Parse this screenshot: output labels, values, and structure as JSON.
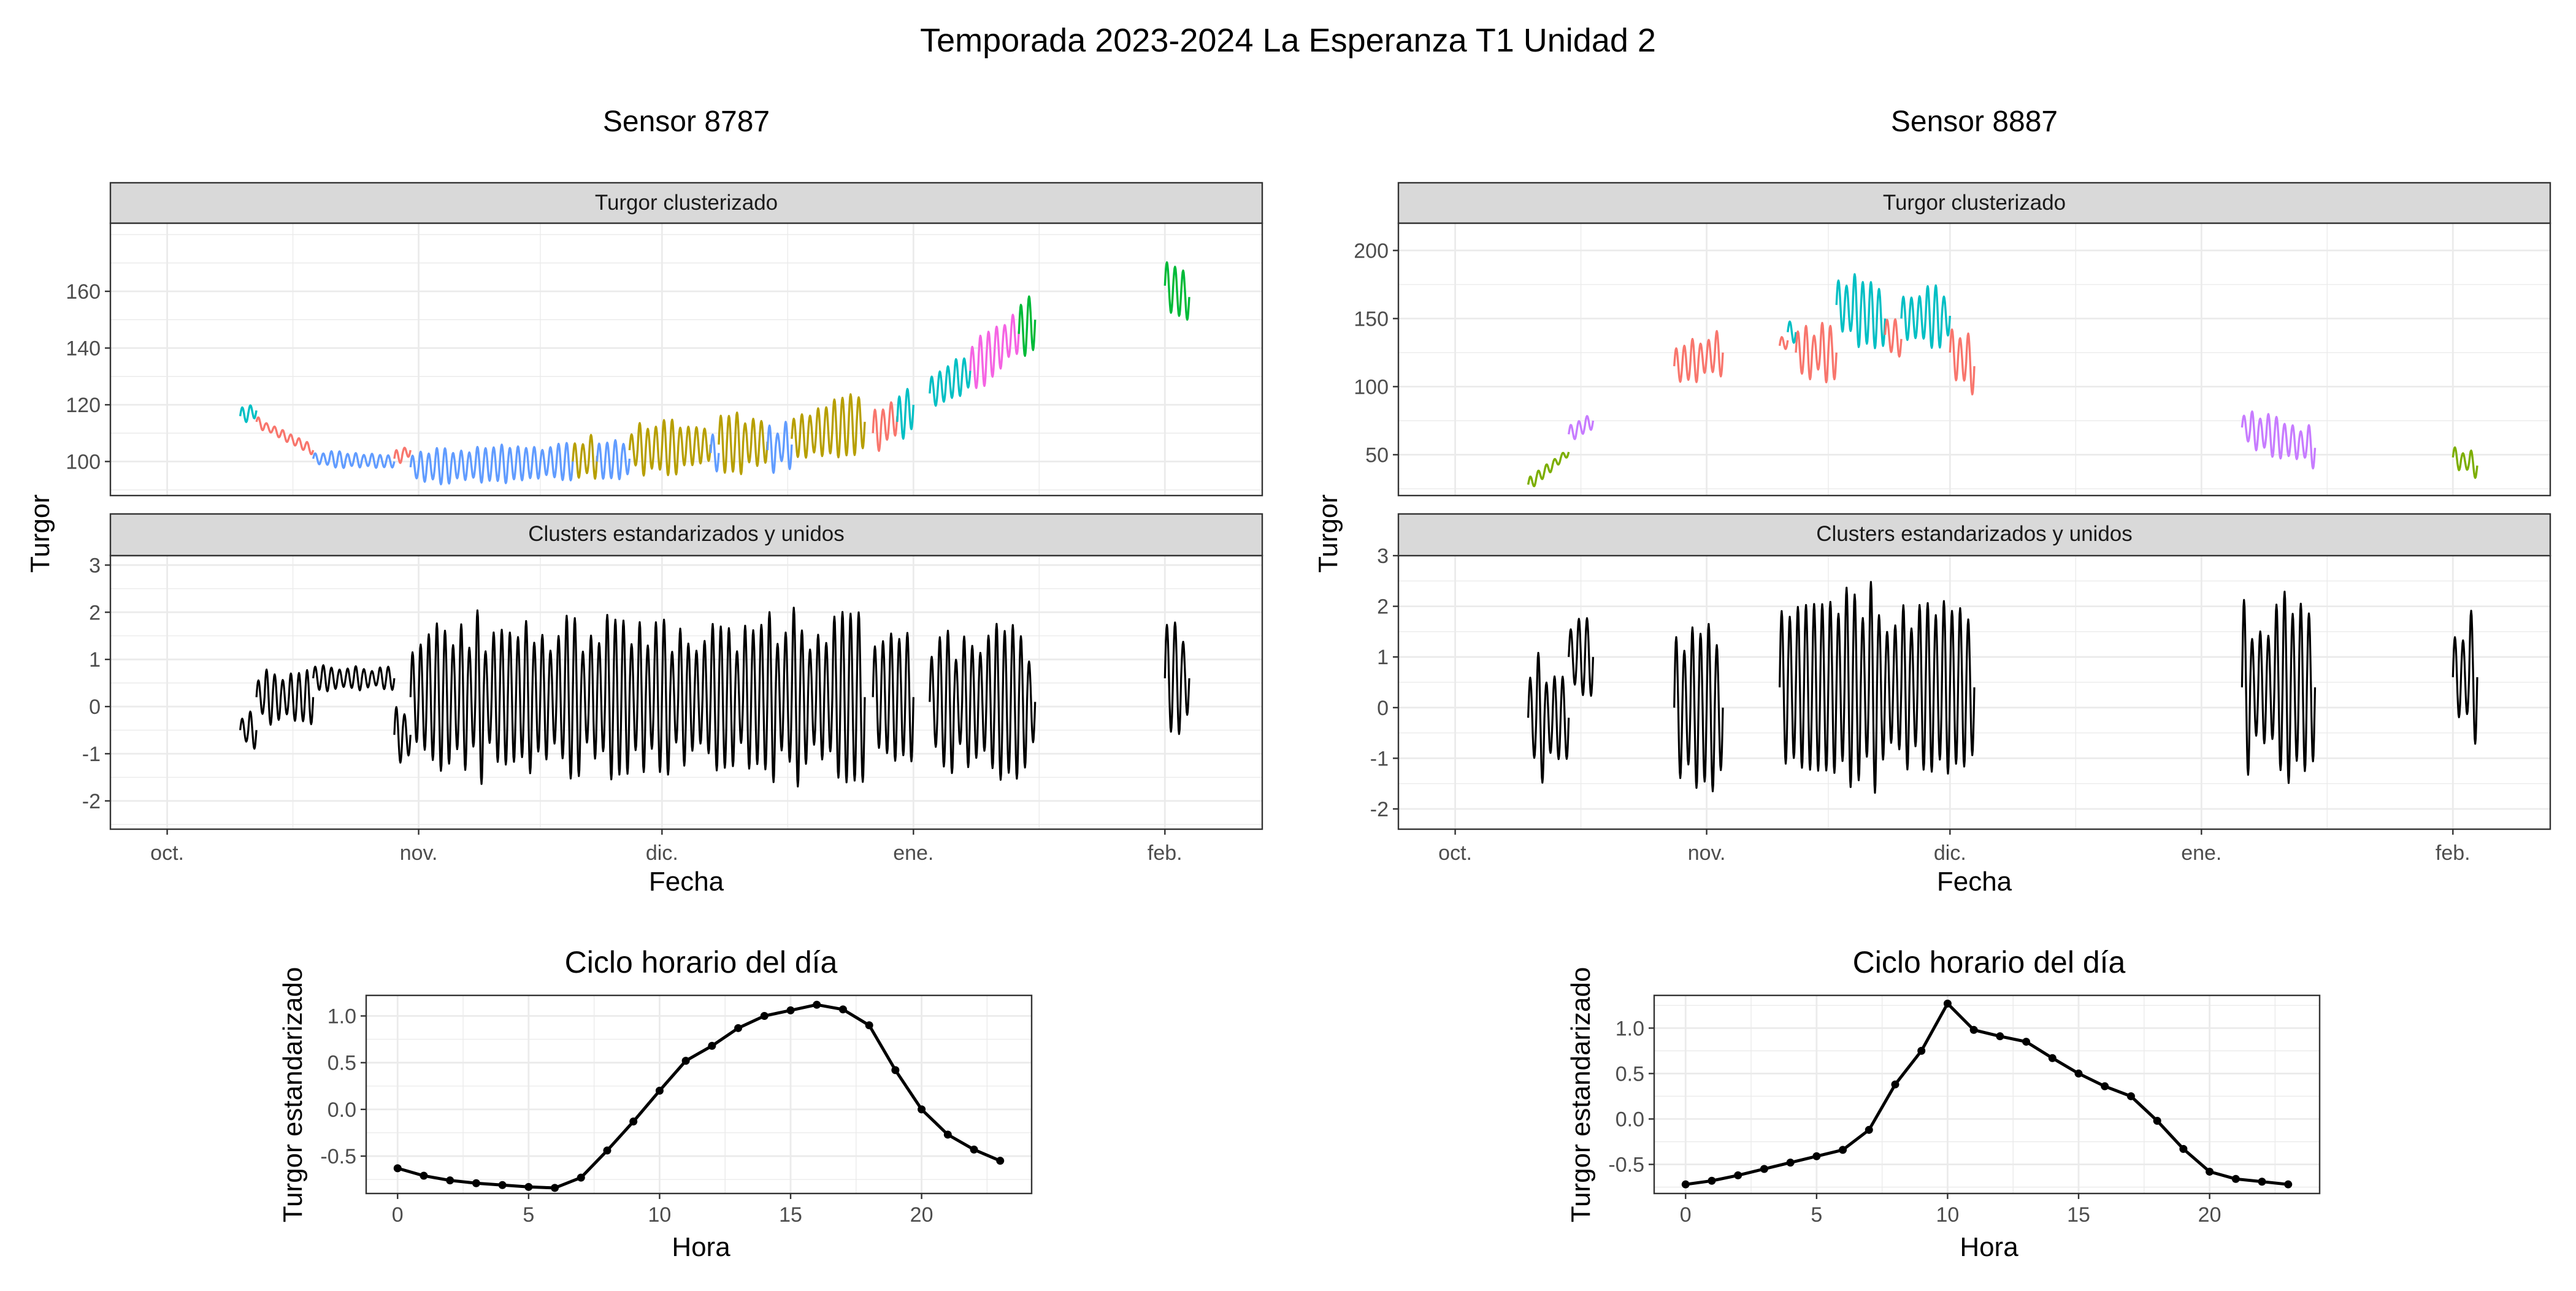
{
  "page_title": "Temporada 2023-2024 La Esperanza T1 Unidad 2",
  "panel_titles": [
    "Sensor 8787",
    "Sensor 8887"
  ],
  "facet_labels": {
    "top": "Turgor clusterizado",
    "bottom": "Clusters estandarizados y unidos"
  },
  "colors": {
    "cluster_palette": [
      "#F8766D",
      "#B79F00",
      "#00BA38",
      "#00BFC4",
      "#619CFF",
      "#F564E3",
      "#7CAE00",
      "#C77CFF"
    ],
    "line": "#000000",
    "strip": "#D9D9D9",
    "grid": "#EBEBEB"
  },
  "chart_data": [
    {
      "id": "s8787",
      "type": "line",
      "facet": "Turgor clusterizado",
      "title": "Sensor 8787",
      "xlabel": "Fecha",
      "ylabel": "Turgor",
      "x_range": [
        "2023-09-24",
        "2024-02-13"
      ],
      "x_ticks": [
        {
          "date": "2023-10-01",
          "label": "oct."
        },
        {
          "date": "2023-11-01",
          "label": "nov."
        },
        {
          "date": "2023-12-01",
          "label": "dic."
        },
        {
          "date": "2024-01-01",
          "label": "ene."
        },
        {
          "date": "2024-02-01",
          "label": "feb."
        }
      ],
      "ylim": [
        88,
        184
      ],
      "y_ticks": [
        100,
        120,
        140,
        160
      ],
      "grid": true,
      "clusters": [
        {
          "color": "#00BFC4",
          "start": "2023-10-10",
          "end": "2023-10-12",
          "v0": 116,
          "v1": 118,
          "amp": 3,
          "period": 1
        },
        {
          "color": "#F8766D",
          "start": "2023-10-12",
          "end": "2023-10-19",
          "v0": 114,
          "v1": 104,
          "amp": 2,
          "period": 1
        },
        {
          "color": "#619CFF",
          "start": "2023-10-19",
          "end": "2023-10-29",
          "v0": 101,
          "v1": 100,
          "amp": 3,
          "period": 1
        },
        {
          "color": "#F8766D",
          "start": "2023-10-29",
          "end": "2023-10-31",
          "v0": 101,
          "v1": 104,
          "amp": 3,
          "period": 1
        },
        {
          "color": "#619CFF",
          "start": "2023-10-31",
          "end": "2023-11-20",
          "v0": 98,
          "v1": 100,
          "amp": 7,
          "period": 1
        },
        {
          "color": "#B79F00",
          "start": "2023-11-20",
          "end": "2023-11-23",
          "v0": 100,
          "v1": 102,
          "amp": 9,
          "period": 1
        },
        {
          "color": "#619CFF",
          "start": "2023-11-23",
          "end": "2023-11-27",
          "v0": 100,
          "v1": 101,
          "amp": 8,
          "period": 1
        },
        {
          "color": "#B79F00",
          "start": "2023-11-27",
          "end": "2023-12-07",
          "v0": 104,
          "v1": 106,
          "amp": 10,
          "period": 1
        },
        {
          "color": "#619CFF",
          "start": "2023-12-07",
          "end": "2023-12-08",
          "v0": 103,
          "v1": 103,
          "amp": 8,
          "period": 1
        },
        {
          "color": "#B79F00",
          "start": "2023-12-08",
          "end": "2023-12-14",
          "v0": 106,
          "v1": 107,
          "amp": 11,
          "period": 1
        },
        {
          "color": "#619CFF",
          "start": "2023-12-14",
          "end": "2023-12-17",
          "v0": 104,
          "v1": 106,
          "amp": 9,
          "period": 1
        },
        {
          "color": "#B79F00",
          "start": "2023-12-17",
          "end": "2023-12-26",
          "v0": 108,
          "v1": 114,
          "amp": 11,
          "period": 1
        },
        {
          "color": "#F8766D",
          "start": "2023-12-27",
          "end": "2023-12-30",
          "v0": 110,
          "v1": 116,
          "amp": 8,
          "period": 1
        },
        {
          "color": "#00BFC4",
          "start": "2023-12-30",
          "end": "2024-01-01",
          "v0": 114,
          "v1": 120,
          "amp": 9,
          "period": 1
        },
        {
          "color": "#00BFC4",
          "start": "2024-01-03",
          "end": "2024-01-08",
          "v0": 124,
          "v1": 132,
          "amp": 9,
          "period": 1
        },
        {
          "color": "#F564E3",
          "start": "2024-01-08",
          "end": "2024-01-14",
          "v0": 132,
          "v1": 146,
          "amp": 11,
          "period": 1
        },
        {
          "color": "#00BA38",
          "start": "2024-01-14",
          "end": "2024-01-16",
          "v0": 145,
          "v1": 150,
          "amp": 12,
          "period": 1
        },
        {
          "color": "#00BA38",
          "start": "2024-02-01",
          "end": "2024-02-04",
          "v0": 162,
          "v1": 158,
          "amp": 11,
          "period": 1
        }
      ]
    },
    {
      "id": "s8787",
      "type": "line",
      "facet": "Clusters estandarizados y unidos",
      "xlabel": "Fecha",
      "ylabel": "Turgor",
      "ylim": [
        -2.6,
        3.2
      ],
      "y_ticks": [
        -2,
        -1,
        0,
        1,
        2,
        3
      ],
      "grid": true,
      "segments": [
        {
          "start": "2023-10-10",
          "end": "2023-10-12",
          "mean": -0.5,
          "amp": 0.4,
          "period": 1
        },
        {
          "start": "2023-10-12",
          "end": "2023-10-19",
          "mean": 0.2,
          "amp": 0.6,
          "period": 1
        },
        {
          "start": "2023-10-19",
          "end": "2023-10-29",
          "mean": 0.6,
          "amp": 0.3,
          "period": 1
        },
        {
          "start": "2023-10-29",
          "end": "2023-10-31",
          "mean": -0.6,
          "amp": 0.6,
          "period": 1
        },
        {
          "start": "2023-10-31",
          "end": "2023-12-26",
          "mean": 0.2,
          "amp": 1.9,
          "period": 1
        },
        {
          "start": "2023-12-27",
          "end": "2024-01-01",
          "mean": 0.2,
          "amp": 1.9,
          "period": 1
        },
        {
          "start": "2024-01-03",
          "end": "2024-01-16",
          "mean": 0.1,
          "amp": 1.7,
          "period": 1
        },
        {
          "start": "2024-02-01",
          "end": "2024-02-04",
          "mean": 0.6,
          "amp": 1.3,
          "period": 1
        }
      ]
    },
    {
      "id": "s8887",
      "type": "line",
      "facet": "Turgor clusterizado",
      "title": "Sensor 8887",
      "xlabel": "Fecha",
      "ylabel": "Turgor",
      "x_range": [
        "2023-09-24",
        "2024-02-13"
      ],
      "x_ticks": [
        {
          "date": "2023-10-01",
          "label": "oct."
        },
        {
          "date": "2023-11-01",
          "label": "nov."
        },
        {
          "date": "2023-12-01",
          "label": "dic."
        },
        {
          "date": "2024-01-01",
          "label": "ene."
        },
        {
          "date": "2024-02-01",
          "label": "feb."
        }
      ],
      "ylim": [
        20,
        220
      ],
      "y_ticks": [
        50,
        100,
        150,
        200
      ],
      "grid": true,
      "clusters": [
        {
          "color": "#7CAE00",
          "start": "2023-10-10",
          "end": "2023-10-15",
          "v0": 28,
          "v1": 52,
          "amp": 5,
          "period": 1
        },
        {
          "color": "#C77CFF",
          "start": "2023-10-15",
          "end": "2023-10-18",
          "v0": 65,
          "v1": 75,
          "amp": 7,
          "period": 1
        },
        {
          "color": "#F8766D",
          "start": "2023-10-28",
          "end": "2023-11-03",
          "v0": 115,
          "v1": 125,
          "amp": 18,
          "period": 1
        },
        {
          "color": "#F8766D",
          "start": "2023-11-10",
          "end": "2023-11-11",
          "v0": 130,
          "v1": 134,
          "amp": 6,
          "period": 1
        },
        {
          "color": "#00BFC4",
          "start": "2023-11-11",
          "end": "2023-11-12",
          "v0": 140,
          "v1": 140,
          "amp": 8,
          "period": 1
        },
        {
          "color": "#F8766D",
          "start": "2023-11-12",
          "end": "2023-11-17",
          "v0": 125,
          "v1": 125,
          "amp": 22,
          "period": 1
        },
        {
          "color": "#00BFC4",
          "start": "2023-11-17",
          "end": "2023-11-23",
          "v0": 160,
          "v1": 150,
          "amp": 28,
          "period": 1
        },
        {
          "color": "#F8766D",
          "start": "2023-11-23",
          "end": "2023-11-25",
          "v0": 138,
          "v1": 135,
          "amp": 14,
          "period": 1
        },
        {
          "color": "#00BFC4",
          "start": "2023-11-25",
          "end": "2023-12-01",
          "v0": 150,
          "v1": 152,
          "amp": 25,
          "period": 1
        },
        {
          "color": "#F8766D",
          "start": "2023-12-01",
          "end": "2023-12-04",
          "v0": 125,
          "v1": 115,
          "amp": 22,
          "period": 1
        },
        {
          "color": "#C77CFF",
          "start": "2024-01-06",
          "end": "2024-01-15",
          "v0": 70,
          "v1": 55,
          "amp": 16,
          "period": 1
        },
        {
          "color": "#7CAE00",
          "start": "2024-02-01",
          "end": "2024-02-04",
          "v0": 48,
          "v1": 42,
          "amp": 10,
          "period": 1
        }
      ]
    },
    {
      "id": "s8887",
      "type": "line",
      "facet": "Clusters estandarizados y unidos",
      "xlabel": "Fecha",
      "ylabel": "Turgor",
      "ylim": [
        -2.4,
        3.0
      ],
      "y_ticks": [
        -2,
        -1,
        0,
        1,
        2,
        3
      ],
      "grid": true,
      "segments": [
        {
          "start": "2023-10-10",
          "end": "2023-10-15",
          "mean": -0.2,
          "amp": 1.3,
          "period": 1
        },
        {
          "start": "2023-10-15",
          "end": "2023-10-18",
          "mean": 1.0,
          "amp": 0.9,
          "period": 1
        },
        {
          "start": "2023-10-28",
          "end": "2023-11-03",
          "mean": 0.0,
          "amp": 1.7,
          "period": 1
        },
        {
          "start": "2023-11-10",
          "end": "2023-12-04",
          "mean": 0.4,
          "amp": 2.1,
          "period": 1
        },
        {
          "start": "2024-01-06",
          "end": "2024-01-15",
          "mean": 0.4,
          "amp": 1.9,
          "period": 1
        },
        {
          "start": "2024-02-01",
          "end": "2024-02-04",
          "mean": 0.6,
          "amp": 1.4,
          "period": 1
        }
      ]
    },
    {
      "id": "ciclo-8787",
      "type": "line",
      "title": "Ciclo horario del día",
      "xlabel": "Hora",
      "ylabel": "Turgor estandarizado",
      "xlim": [
        -1.2,
        24.2
      ],
      "x_ticks": [
        0,
        5,
        10,
        15,
        20
      ],
      "ylim": [
        -0.9,
        1.22
      ],
      "y_ticks": [
        -0.5,
        0.0,
        0.5,
        1.0
      ],
      "y_tick_labels": [
        "-0.5",
        "0.0",
        "0.5",
        "1.0"
      ],
      "grid": true,
      "x": [
        0,
        1,
        2,
        3,
        4,
        5,
        6,
        7,
        8,
        9,
        10,
        11,
        12,
        13,
        14,
        15,
        16,
        17,
        18,
        19,
        20,
        21,
        22,
        23
      ],
      "y": [
        -0.63,
        -0.71,
        -0.76,
        -0.79,
        -0.81,
        -0.83,
        -0.84,
        -0.73,
        -0.44,
        -0.13,
        0.2,
        0.52,
        0.68,
        0.87,
        1.0,
        1.06,
        1.12,
        1.07,
        0.9,
        0.42,
        0.0,
        -0.27,
        -0.43,
        -0.55
      ]
    },
    {
      "id": "ciclo-8887",
      "type": "line",
      "title": "Ciclo horario del día",
      "xlabel": "Hora",
      "ylabel": "Turgor estandarizado",
      "xlim": [
        -1.2,
        24.2
      ],
      "x_ticks": [
        0,
        5,
        10,
        15,
        20
      ],
      "ylim": [
        -0.82,
        1.36
      ],
      "y_ticks": [
        -0.5,
        0.0,
        0.5,
        1.0
      ],
      "y_tick_labels": [
        "-0.5",
        "0.0",
        "0.5",
        "1.0"
      ],
      "grid": true,
      "x": [
        0,
        1,
        2,
        3,
        4,
        5,
        6,
        7,
        8,
        9,
        10,
        11,
        12,
        13,
        14,
        15,
        16,
        17,
        18,
        19,
        20,
        21,
        22,
        23
      ],
      "y": [
        -0.72,
        -0.68,
        -0.62,
        -0.55,
        -0.48,
        -0.41,
        -0.34,
        -0.12,
        0.38,
        0.75,
        1.27,
        0.98,
        0.91,
        0.85,
        0.67,
        0.5,
        0.36,
        0.25,
        -0.02,
        -0.33,
        -0.58,
        -0.66,
        -0.69,
        -0.72
      ]
    }
  ]
}
